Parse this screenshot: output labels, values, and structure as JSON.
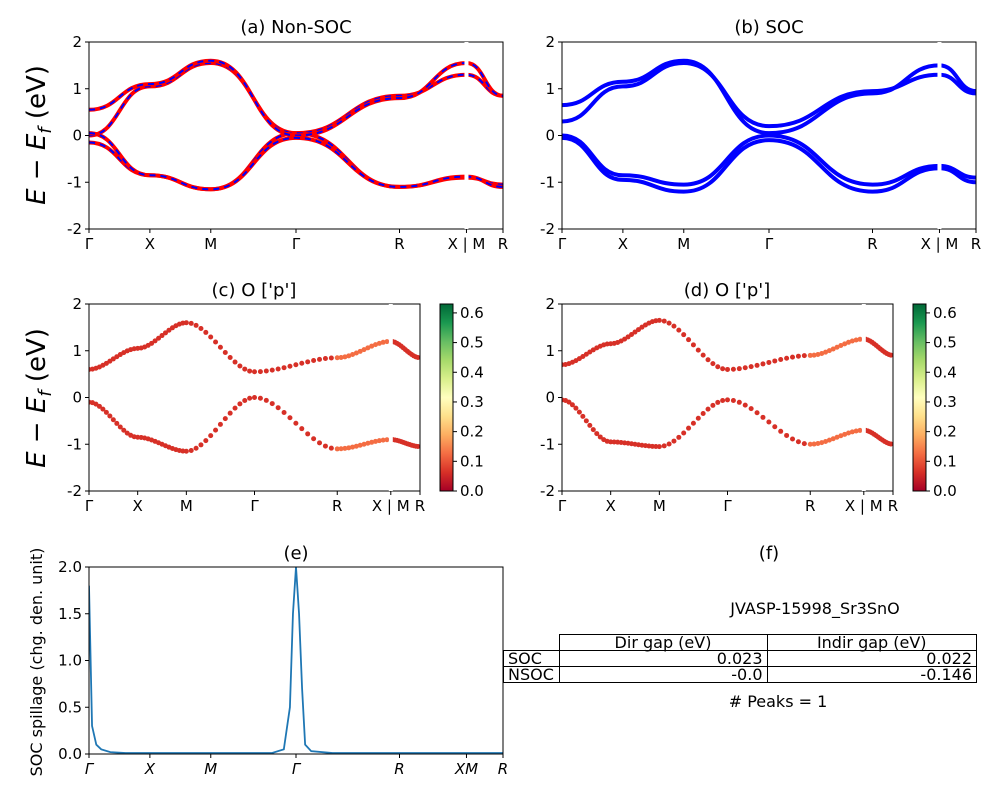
{
  "figure": {
    "panel_a_title": "(a) Non-SOC",
    "panel_b_title": "(b) SOC",
    "panel_c_title": "(c)  O ['p']",
    "panel_d_title": "(d) O ['p']",
    "panel_e_title": "(e)",
    "panel_f_title": "(f)",
    "ylabel_energy": "E − E",
    "ylabel_energy_sub": "f",
    "ylabel_energy_unit": " (eV)",
    "spillage_ylabel": "SOC spillage (chg. den. unit)",
    "material_id": "JVASP-15998_Sr3SnO",
    "peaks_text": "# Peaks = 1"
  },
  "colors": {
    "nonsoc_solid": "#ff0000",
    "nonsoc_dashed": "#0000ff",
    "soc": "#0000ff",
    "spillage": "#1f77b4"
  },
  "table": {
    "headers": [
      "",
      "Dir gap (eV)",
      "Indir gap (eV)"
    ],
    "rows": [
      {
        "label": "SOC",
        "dir_gap": "0.023",
        "indir_gap": "0.022"
      },
      {
        "label": "NSOC",
        "dir_gap": "-0.0",
        "indir_gap": "-0.146"
      }
    ]
  },
  "chart_data": [
    {
      "panel": "a",
      "type": "line",
      "title": "(a) Non-SOC",
      "ylabel": "E − E_f (eV)",
      "ylim": [
        -2,
        2
      ],
      "yticks": [
        -2,
        -1,
        0,
        1,
        2
      ],
      "x_path": [
        0,
        1,
        2,
        3.4,
        5.1,
        6.2,
        6.8
      ],
      "xtick_labels": [
        "Γ",
        "X",
        "M",
        "Γ",
        "R",
        "X | M",
        "R"
      ],
      "series": [
        {
          "values": [
            0.0,
            1.05,
            1.55,
            0.05,
            0.85,
            1.3,
            0.85
          ]
        },
        {
          "values": [
            -0.15,
            -0.85,
            -1.15,
            0.05,
            -1.1,
            -0.9,
            -1.05
          ]
        },
        {
          "values": [
            0.55,
            1.1,
            1.6,
            0.0,
            0.8,
            1.55,
            0.85
          ]
        },
        {
          "values": [
            0.05,
            -0.85,
            -1.15,
            -0.05,
            -1.1,
            -0.88,
            -1.1
          ]
        }
      ]
    },
    {
      "panel": "b",
      "type": "line",
      "title": "(b) SOC",
      "ylim": [
        -2,
        2
      ],
      "yticks": [
        -2,
        -1,
        0,
        1,
        2
      ],
      "x_path": [
        0,
        1,
        2,
        3.4,
        5.1,
        6.2,
        6.8
      ],
      "xtick_labels": [
        "Γ",
        "X",
        "M",
        "Γ",
        "R",
        "X | M",
        "R"
      ],
      "series": [
        {
          "values": [
            0.3,
            1.05,
            1.55,
            0.2,
            0.95,
            1.3,
            0.9
          ]
        },
        {
          "values": [
            0.65,
            1.15,
            1.6,
            0.05,
            0.9,
            1.5,
            0.95
          ]
        },
        {
          "values": [
            -0.05,
            -0.95,
            -1.2,
            -0.1,
            -1.2,
            -0.7,
            -1.0
          ]
        },
        {
          "values": [
            0.0,
            -0.85,
            -1.05,
            0.0,
            -1.05,
            -0.65,
            -0.9
          ]
        }
      ]
    },
    {
      "panel": "c",
      "type": "scatter",
      "title": "(c)  O ['p']",
      "ylabel": "E − E_f (eV)",
      "ylim": [
        -2,
        2
      ],
      "yticks": [
        -2,
        -1,
        0,
        1,
        2
      ],
      "x_path": [
        0,
        1,
        2,
        3.4,
        5.1,
        6.2,
        6.8
      ],
      "xtick_labels": [
        "Γ",
        "X",
        "M",
        "Γ",
        "R",
        "X | M",
        "R"
      ],
      "colorbar": {
        "min": 0.0,
        "max": 0.63,
        "ticks": [
          0.0,
          0.1,
          0.2,
          0.3,
          0.4,
          0.5,
          0.6
        ]
      },
      "series": [
        {
          "values": [
            0.6,
            1.05,
            1.6,
            0.55,
            0.85,
            1.2,
            0.85
          ],
          "weight": 0.1
        },
        {
          "values": [
            -0.1,
            -0.85,
            -1.15,
            0.0,
            -1.1,
            -0.9,
            -1.05
          ],
          "weight": 0.05
        }
      ]
    },
    {
      "panel": "d",
      "type": "scatter",
      "title": "(d) O ['p']",
      "ylim": [
        -2,
        2
      ],
      "yticks": [
        -2,
        -1,
        0,
        1,
        2
      ],
      "x_path": [
        0,
        1,
        2,
        3.4,
        5.1,
        6.2,
        6.8
      ],
      "xtick_labels": [
        "Γ",
        "X",
        "M",
        "Γ",
        "R",
        "X | M",
        "R"
      ],
      "colorbar": {
        "min": 0.0,
        "max": 0.63,
        "ticks": [
          0.0,
          0.1,
          0.2,
          0.3,
          0.4,
          0.5,
          0.6
        ]
      },
      "series": [
        {
          "values": [
            0.7,
            1.15,
            1.65,
            0.6,
            0.9,
            1.25,
            0.9
          ],
          "weight": 0.1
        },
        {
          "values": [
            -0.05,
            -0.95,
            -1.05,
            -0.05,
            -1.0,
            -0.7,
            -1.0
          ],
          "weight": 0.05
        }
      ]
    },
    {
      "panel": "e",
      "type": "line",
      "title": "(e)",
      "ylabel": "SOC spillage (chg. den. unit)",
      "ylim": [
        0,
        2.0
      ],
      "yticks": [
        0.0,
        0.5,
        1.0,
        1.5,
        2.0
      ],
      "xtick_labels": [
        "Γ",
        "X",
        "M",
        "Γ",
        "R",
        "XM",
        "R"
      ],
      "x": [
        0,
        0.05,
        0.12,
        0.2,
        0.35,
        0.6,
        1.0,
        2.0,
        3.0,
        3.2,
        3.3,
        3.35,
        3.4,
        3.45,
        3.5,
        3.55,
        3.65,
        4.0,
        5.1,
        6.0,
        6.8
      ],
      "values": [
        1.8,
        0.3,
        0.1,
        0.05,
        0.02,
        0.01,
        0.01,
        0.01,
        0.01,
        0.05,
        0.5,
        1.5,
        2.0,
        1.5,
        0.7,
        0.1,
        0.03,
        0.01,
        0.01,
        0.01,
        0.01
      ],
      "peaks": 1
    }
  ]
}
